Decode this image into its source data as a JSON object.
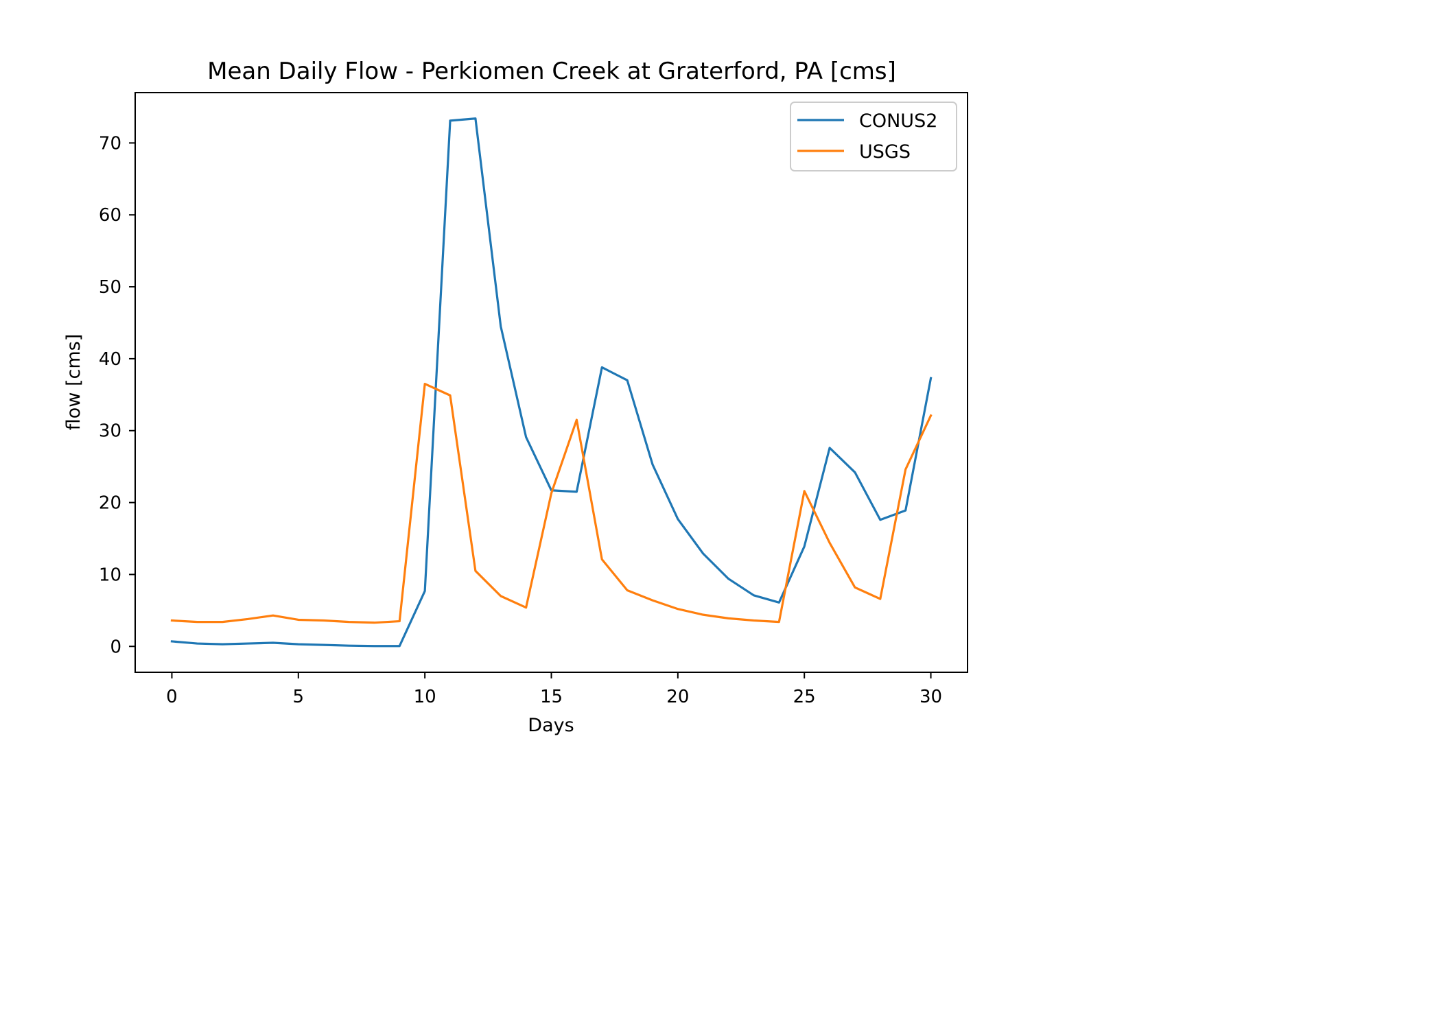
{
  "chart_data": {
    "type": "line",
    "title": "Mean Daily Flow - Perkiomen Creek at Graterford, PA [cms]",
    "xlabel": "Days",
    "ylabel": "flow [cms]",
    "xlim": [
      -1.45,
      31.45
    ],
    "ylim": [
      -3.6,
      77.0
    ],
    "xticks": [
      0,
      5,
      10,
      15,
      20,
      25,
      30
    ],
    "yticks": [
      0,
      10,
      20,
      30,
      40,
      50,
      60,
      70
    ],
    "grid": false,
    "legend_position": "top-right",
    "x": [
      0,
      1,
      2,
      3,
      4,
      5,
      6,
      7,
      8,
      9,
      10,
      11,
      12,
      13,
      14,
      15,
      16,
      17,
      18,
      19,
      20,
      21,
      22,
      23,
      24,
      25,
      26,
      27,
      28,
      29,
      30
    ],
    "series": [
      {
        "name": "CONUS2",
        "color": "#1f77b4",
        "values": [
          0.7,
          0.4,
          0.3,
          0.4,
          0.5,
          0.3,
          0.2,
          0.1,
          0.05,
          0.05,
          7.7,
          73.1,
          73.4,
          44.5,
          29.1,
          21.7,
          21.5,
          38.8,
          37.0,
          25.3,
          17.7,
          12.9,
          9.4,
          7.1,
          6.1,
          13.9,
          27.6,
          24.2,
          17.6,
          18.9,
          37.3
        ]
      },
      {
        "name": "USGS",
        "color": "#ff7f0e",
        "values": [
          3.6,
          3.4,
          3.4,
          3.8,
          4.3,
          3.7,
          3.6,
          3.4,
          3.3,
          3.5,
          36.5,
          34.9,
          10.5,
          7.0,
          5.4,
          21.3,
          31.5,
          12.1,
          7.8,
          6.4,
          5.2,
          4.4,
          3.9,
          3.6,
          3.4,
          21.6,
          14.4,
          8.2,
          6.6,
          24.6,
          32.1
        ]
      }
    ]
  }
}
